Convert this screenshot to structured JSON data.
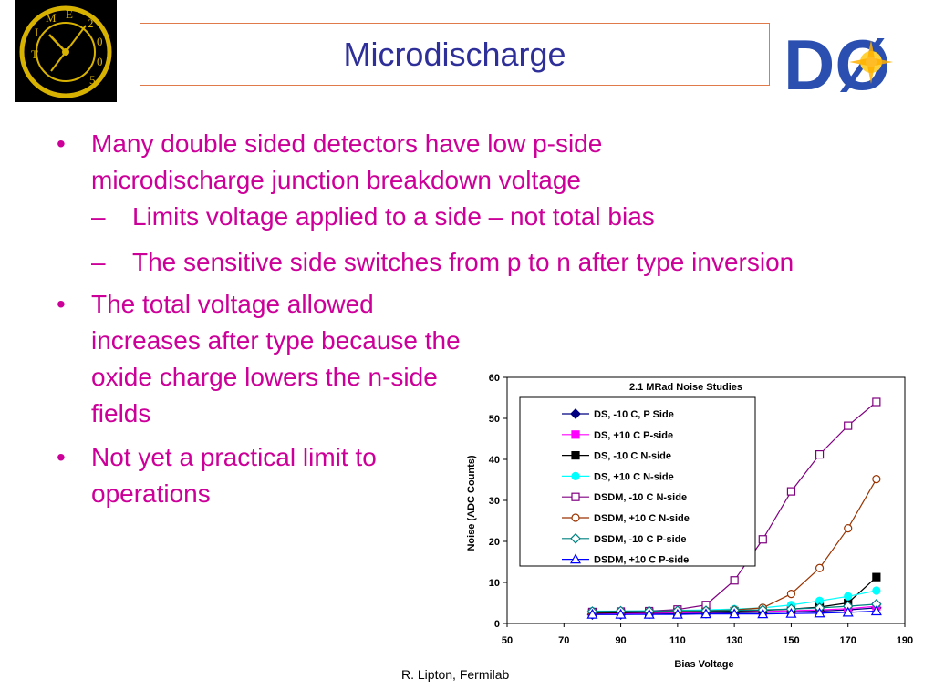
{
  "header": {
    "title": "Microdischarge",
    "left_logo": {
      "letters": [
        "T",
        "I",
        "M",
        "E",
        "2",
        "0",
        "0",
        "5"
      ],
      "icon": "clock-logo"
    },
    "right_logo": {
      "text": "DØ",
      "icon": "d-zero-logo",
      "color": "#2a4fb0"
    }
  },
  "bullets": [
    {
      "symbol": "•",
      "text": "Many double sided detectors have low p-side microdischarge junction breakdown voltage",
      "subs": [
        {
          "symbol": "–",
          "text": "Limits voltage applied to a side – not total bias"
        },
        {
          "symbol": "–",
          "text": "The sensitive side switches from p to n after type inversion"
        }
      ]
    },
    {
      "symbol": "•",
      "text": "The total voltage allowed increases after type because the oxide charge lowers the n-side fields"
    },
    {
      "symbol": "•",
      "text": "Not yet a practical limit to operations"
    }
  ],
  "text_color": "#cc0099",
  "title_color": "#2f2f9a",
  "footer": {
    "text": "R. Lipton, Fermilab"
  },
  "chart_data": {
    "type": "line",
    "title": "2.1 MRad Noise Studies",
    "xlabel": "Bias Voltage",
    "ylabel": "Noise (ADC Counts)",
    "xlim": [
      50,
      190
    ],
    "ylim": [
      0,
      60
    ],
    "xticks": [
      50,
      70,
      90,
      110,
      130,
      150,
      170,
      190
    ],
    "yticks": [
      0,
      10,
      20,
      30,
      40,
      50,
      60
    ],
    "grid": false,
    "legend_position": "top-left",
    "x": [
      80,
      90,
      100,
      110,
      120,
      130,
      140,
      150,
      160,
      170,
      180
    ],
    "series": [
      {
        "name": "DS, -10 C, P Side",
        "color": "#000080",
        "marker": "diamond",
        "filled": true,
        "values": [
          2.2,
          2.2,
          2.3,
          2.4,
          2.5,
          2.6,
          2.7,
          2.8,
          3.0,
          3.3,
          3.8
        ]
      },
      {
        "name": "DS, +10 C P-side",
        "color": "#ff00ff",
        "marker": "square",
        "filled": true,
        "values": [
          2.4,
          2.4,
          2.5,
          2.6,
          2.7,
          2.8,
          2.9,
          3.1,
          3.3,
          3.6,
          4.2
        ]
      },
      {
        "name": "DS, -10 C  N-side",
        "color": "#000000",
        "marker": "square",
        "filled": true,
        "values": [
          2.5,
          2.6,
          2.7,
          2.8,
          2.9,
          3.0,
          3.2,
          3.5,
          4.0,
          5.0,
          11.3
        ]
      },
      {
        "name": "DS, +10 C  N-side",
        "color": "#00ffff",
        "marker": "circle",
        "filled": true,
        "values": [
          3.0,
          3.0,
          3.1,
          3.2,
          3.3,
          3.5,
          3.8,
          4.5,
          5.5,
          6.6,
          8.0
        ]
      },
      {
        "name": "DSDM,  -10 C  N-side",
        "color": "#800080",
        "marker": "square",
        "filled": false,
        "values": [
          2.8,
          2.9,
          3.0,
          3.4,
          4.5,
          10.5,
          20.5,
          32.2,
          41.2,
          48.2,
          54.0
        ]
      },
      {
        "name": "DSDM, +10 C  N-side",
        "color": "#993300",
        "marker": "circle",
        "filled": false,
        "values": [
          2.7,
          2.8,
          2.9,
          3.0,
          3.1,
          3.3,
          3.8,
          7.2,
          13.5,
          23.2,
          35.2
        ]
      },
      {
        "name": "DSDM, -10 C P-side",
        "color": "#008080",
        "marker": "diamond",
        "filled": false,
        "values": [
          2.9,
          3.0,
          3.0,
          3.1,
          3.1,
          3.2,
          3.3,
          3.5,
          3.8,
          4.2,
          4.7
        ]
      },
      {
        "name": "DSDM, +10 C  P-side",
        "color": "#0000ff",
        "marker": "triangle",
        "filled": false,
        "values": [
          2.2,
          2.2,
          2.2,
          2.2,
          2.3,
          2.3,
          2.3,
          2.4,
          2.5,
          2.7,
          3.0
        ]
      }
    ]
  }
}
